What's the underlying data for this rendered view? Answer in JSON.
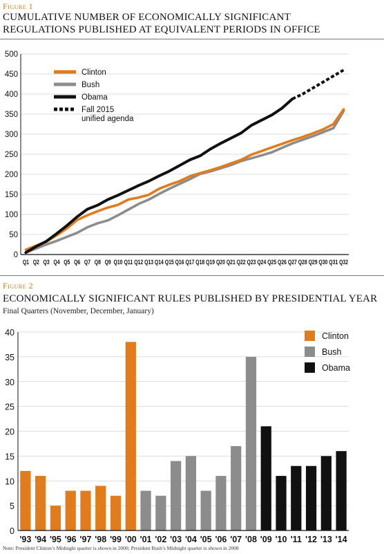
{
  "figure1": {
    "label": "Figure 1",
    "title_line1": "CUMULATIVE NUMBER OF ECONOMICALLY SIGNIFICANT",
    "title_line2": "REGULATIONS PUBLISHED AT EQUIVALENT PERIODS IN OFFICE"
  },
  "figure2": {
    "label": "Figure 2",
    "title": "ECONOMICALLY SIGNIFICANT RULES PUBLISHED BY PRESIDENTIAL YEAR",
    "subtitle": "Final Quarters (November, December, January)"
  },
  "note": "Note: President Clinton’s Midnight quarter is shown in 2000; President Bush’s Midnight quarter is shown in 2008",
  "colors": {
    "clinton": "#e07b1e",
    "bush": "#8c8c8c",
    "obama": "#111111",
    "grid": "#bbbbbb"
  },
  "chart_data": [
    {
      "type": "line",
      "title": "CUMULATIVE NUMBER OF ECONOMICALLY SIGNIFICANT REGULATIONS PUBLISHED AT EQUIVALENT PERIODS IN OFFICE",
      "xlabel": "",
      "ylabel": "",
      "ylim": [
        0,
        500
      ],
      "yticks": [
        0,
        50,
        100,
        150,
        200,
        250,
        300,
        350,
        400,
        450,
        500
      ],
      "grid": true,
      "legend_position": "top-left",
      "x": [
        "Q1",
        "Q2",
        "Q3",
        "Q4",
        "Q5",
        "Q6",
        "Q7",
        "Q8",
        "Q9",
        "Q10",
        "Q11",
        "Q12",
        "Q13",
        "Q14",
        "Q15",
        "Q16",
        "Q17",
        "Q18",
        "Q19",
        "Q20",
        "Q21",
        "Q22",
        "Q23",
        "Q24",
        "Q25",
        "Q26",
        "Q27",
        "Q28",
        "Q29",
        "Q30",
        "Q31",
        "Q32"
      ],
      "series": [
        {
          "name": "Clinton",
          "values": [
            12,
            22,
            32,
            48,
            65,
            86,
            98,
            108,
            117,
            124,
            137,
            142,
            149,
            164,
            174,
            183,
            195,
            203,
            210,
            218,
            227,
            236,
            249,
            258,
            267,
            276,
            285,
            293,
            302,
            312,
            325,
            362
          ]
        },
        {
          "name": "Bush",
          "values": [
            5,
            15,
            25,
            34,
            44,
            54,
            68,
            78,
            85,
            98,
            112,
            126,
            137,
            151,
            164,
            176,
            188,
            201,
            207,
            215,
            223,
            233,
            240,
            247,
            255,
            266,
            277,
            286,
            295,
            305,
            315,
            358
          ]
        },
        {
          "name": "Obama",
          "values": [
            5,
            20,
            33,
            52,
            72,
            94,
            113,
            123,
            137,
            148,
            160,
            172,
            183,
            196,
            208,
            222,
            236,
            246,
            263,
            277,
            290,
            303,
            322,
            335,
            348,
            365,
            388,
            null,
            null,
            null,
            null,
            null
          ]
        },
        {
          "name": "Fall 2015 unified agenda",
          "values": [
            null,
            null,
            null,
            null,
            null,
            null,
            null,
            null,
            null,
            null,
            null,
            null,
            null,
            null,
            null,
            null,
            null,
            null,
            null,
            null,
            null,
            null,
            null,
            null,
            null,
            null,
            388,
            400,
            415,
            430,
            445,
            460
          ]
        }
      ]
    },
    {
      "type": "bar",
      "title": "ECONOMICALLY SIGNIFICANT RULES PUBLISHED BY PRESIDENTIAL YEAR",
      "subtitle": "Final Quarters (November, December, January)",
      "ylim": [
        0,
        40
      ],
      "yticks": [
        0,
        5,
        10,
        15,
        20,
        25,
        30,
        35,
        40
      ],
      "grid": true,
      "legend_position": "top-right",
      "categories": [
        "'93",
        "'94",
        "'95",
        "'96",
        "'97",
        "'98",
        "'99",
        "'00",
        "'01",
        "'02",
        "'03",
        "'04",
        "'05",
        "'06",
        "'07",
        "'08",
        "'09",
        "'10",
        "'11",
        "'12",
        "'13",
        "'14"
      ],
      "series_of_category": [
        "Clinton",
        "Clinton",
        "Clinton",
        "Clinton",
        "Clinton",
        "Clinton",
        "Clinton",
        "Clinton",
        "Bush",
        "Bush",
        "Bush",
        "Bush",
        "Bush",
        "Bush",
        "Bush",
        "Bush",
        "Obama",
        "Obama",
        "Obama",
        "Obama",
        "Obama",
        "Obama"
      ],
      "values": [
        12,
        11,
        5,
        8,
        8,
        9,
        7,
        38,
        8,
        7,
        14,
        15,
        8,
        11,
        17,
        35,
        21,
        11,
        13,
        13,
        15,
        16
      ],
      "legend": [
        "Clinton",
        "Bush",
        "Obama"
      ]
    }
  ]
}
